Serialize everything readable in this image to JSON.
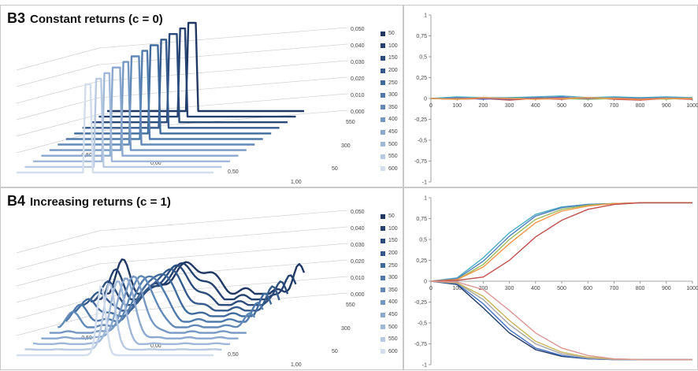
{
  "panels": [
    {
      "label": "B3",
      "title": "Constant returns (c = 0)",
      "legend": [
        "50",
        "100",
        "150",
        "200",
        "250",
        "300",
        "350",
        "400",
        "450",
        "500",
        "550",
        "600"
      ],
      "z_ticks": [
        "0,050",
        "0,040",
        "0,030",
        "0,020",
        "0,010",
        "0,000"
      ],
      "x_ticks": [
        "-0,50",
        "0,00",
        "0,50",
        "1,00"
      ],
      "depth_ticks": [
        "550",
        "300",
        "50"
      ]
    },
    {
      "label": "B4",
      "title": "Increasing returns (c = 1)",
      "legend": [
        "50",
        "100",
        "150",
        "200",
        "250",
        "300",
        "350",
        "400",
        "450",
        "500",
        "550",
        "600"
      ],
      "z_ticks": [
        "0,050",
        "0,040",
        "0,030",
        "0,020",
        "0,010",
        "0,000"
      ],
      "x_ticks": [
        "-0,50",
        "0,00",
        "0,50",
        "1,00"
      ],
      "depth_ticks": [
        "550",
        "300",
        "50"
      ]
    }
  ],
  "chart_data": [
    {
      "type": "line",
      "title": "",
      "panel": "B3",
      "xlim": [
        0,
        1000
      ],
      "ylim": [
        -1,
        1
      ],
      "x_ticks": [
        "0",
        "100",
        "200",
        "300",
        "400",
        "500",
        "600",
        "700",
        "800",
        "900",
        "1000"
      ],
      "y_ticks": [
        "1",
        "0,75",
        "0,5",
        "0,25",
        "0",
        "-0,25",
        "-0,5",
        "-0,75",
        "-1"
      ],
      "x": [
        0,
        100,
        200,
        300,
        400,
        500,
        600,
        700,
        800,
        900,
        1000
      ],
      "series": [
        {
          "color": "#4472c4",
          "values": [
            0,
            0.01,
            -0.01,
            0.01,
            0,
            0.02,
            -0.01,
            0.01,
            0,
            0.01,
            0
          ]
        },
        {
          "color": "#c0504d",
          "values": [
            0,
            -0.01,
            0,
            -0.02,
            0,
            -0.01,
            0.01,
            -0.01,
            -0.02,
            0,
            -0.01
          ]
        },
        {
          "color": "#9bbb59",
          "values": [
            0,
            0,
            0.01,
            0,
            0.01,
            0,
            -0.01,
            0,
            0.01,
            -0.01,
            0.01
          ]
        },
        {
          "color": "#8064a2",
          "values": [
            0,
            0.01,
            0,
            -0.01,
            0.01,
            0.01,
            0,
            0.01,
            0,
            0.01,
            0
          ]
        },
        {
          "color": "#4bacc6",
          "values": [
            0,
            0.02,
            0.01,
            0.01,
            0.02,
            0.03,
            0.01,
            0.02,
            0.01,
            0.02,
            0.01
          ]
        },
        {
          "color": "#f79646",
          "values": [
            0,
            -0.01,
            0.01,
            0,
            -0.01,
            0,
            0.01,
            0,
            -0.01,
            0,
            0
          ]
        }
      ]
    },
    {
      "type": "line",
      "title": "",
      "panel": "B4",
      "xlim": [
        0,
        1000
      ],
      "ylim": [
        -1,
        1
      ],
      "x_ticks": [
        "0",
        "100",
        "200",
        "300",
        "400",
        "500",
        "600",
        "700",
        "800",
        "900",
        "1000"
      ],
      "y_ticks": [
        "1",
        "0,75",
        "0,5",
        "0,25",
        "0",
        "-0,25",
        "-0,5",
        "-0,75",
        "-1"
      ],
      "x": [
        0,
        100,
        200,
        300,
        400,
        500,
        600,
        700,
        800,
        900,
        1000
      ],
      "series": [
        {
          "color": "#4bacc6",
          "values": [
            0,
            0.04,
            0.28,
            0.58,
            0.8,
            0.89,
            0.92,
            0.93,
            0.94,
            0.94,
            0.94
          ]
        },
        {
          "color": "#4f81bd",
          "values": [
            0,
            0.03,
            0.24,
            0.54,
            0.78,
            0.88,
            0.92,
            0.93,
            0.94,
            0.94,
            0.94
          ]
        },
        {
          "color": "#9bbb59",
          "values": [
            0,
            0.02,
            0.2,
            0.5,
            0.74,
            0.86,
            0.91,
            0.93,
            0.94,
            0.94,
            0.94
          ]
        },
        {
          "color": "#f79646",
          "values": [
            0,
            0.02,
            0.17,
            0.45,
            0.7,
            0.84,
            0.9,
            0.93,
            0.94,
            0.94,
            0.94
          ]
        },
        {
          "color": "#c0504d",
          "values": [
            0,
            0.01,
            0.05,
            0.25,
            0.53,
            0.73,
            0.86,
            0.92,
            0.94,
            0.94,
            0.94
          ]
        },
        {
          "color": "#1f3864",
          "values": [
            0,
            -0.04,
            -0.32,
            -0.62,
            -0.82,
            -0.9,
            -0.93,
            -0.94,
            -0.94,
            -0.94,
            -0.94
          ]
        },
        {
          "color": "#4472c4",
          "values": [
            0,
            -0.03,
            -0.27,
            -0.58,
            -0.8,
            -0.89,
            -0.93,
            -0.94,
            -0.94,
            -0.94,
            -0.94
          ]
        },
        {
          "color": "#a5a5a5",
          "values": [
            0,
            -0.02,
            -0.22,
            -0.52,
            -0.75,
            -0.87,
            -0.92,
            -0.94,
            -0.94,
            -0.94,
            -0.94
          ]
        },
        {
          "color": "#c9b458",
          "values": [
            0,
            -0.02,
            -0.18,
            -0.47,
            -0.72,
            -0.85,
            -0.91,
            -0.93,
            -0.94,
            -0.94,
            -0.94
          ]
        },
        {
          "color": "#d99694",
          "values": [
            0,
            -0.01,
            -0.1,
            -0.35,
            -0.62,
            -0.8,
            -0.89,
            -0.93,
            -0.94,
            -0.94,
            -0.94
          ]
        }
      ]
    }
  ]
}
